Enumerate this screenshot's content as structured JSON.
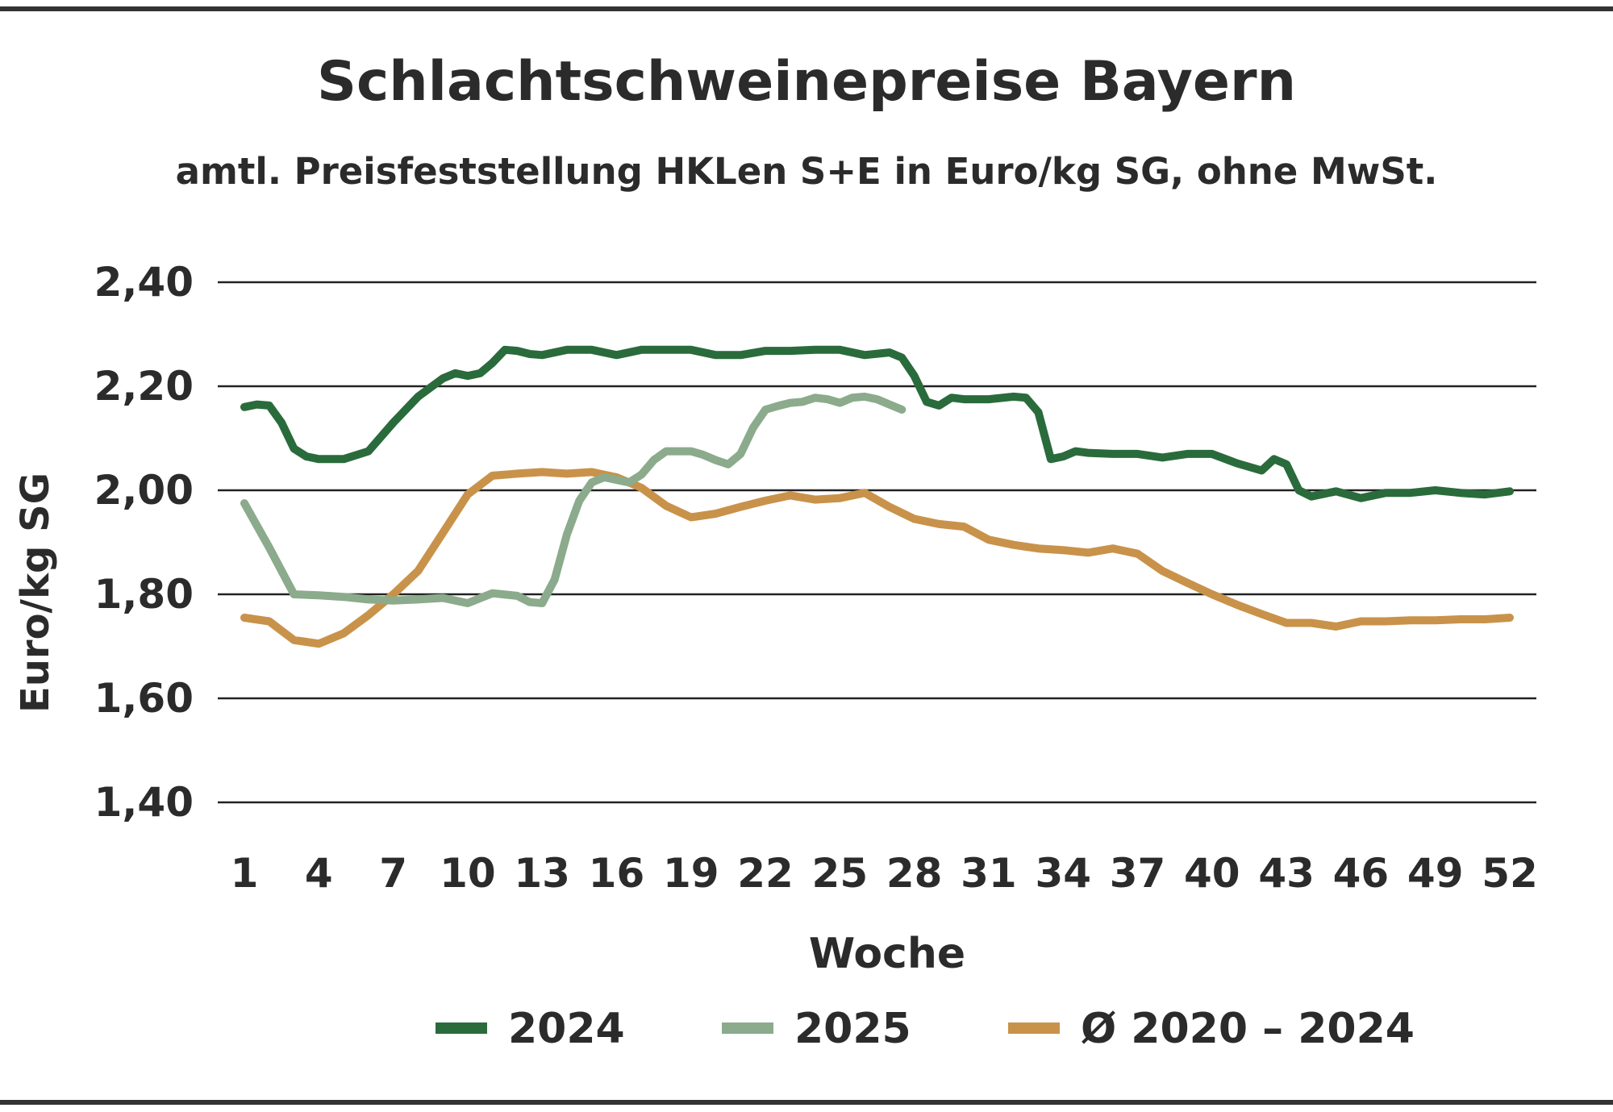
{
  "chart_data": {
    "type": "line",
    "title": "Schlachtschweinepreise Bayern",
    "subtitle": "amtl. Preisfeststellung HKLen S+E in Euro/kg SG, ohne MwSt.",
    "xlabel": "Woche",
    "ylabel": "Euro/kg SG",
    "x_ticks": [
      "1",
      "4",
      "7",
      "10",
      "13",
      "16",
      "19",
      "22",
      "25",
      "28",
      "31",
      "34",
      "37",
      "40",
      "43",
      "46",
      "49",
      "52"
    ],
    "y_ticks": [
      "2,40",
      "2,20",
      "2,00",
      "1,80",
      "1,60",
      "1,40"
    ],
    "ylim": [
      1.4,
      2.4
    ],
    "xlim": [
      1,
      52
    ],
    "grid": "horizontal",
    "legend_position": "bottom",
    "series": [
      {
        "name": "2024",
        "color": "#2a6b3c",
        "x": [
          1,
          1.5,
          2,
          2.5,
          3,
          3.5,
          4,
          4.5,
          5,
          6,
          7,
          8,
          9,
          9.5,
          10,
          10.5,
          11,
          11.5,
          12,
          12.5,
          13,
          14,
          15,
          16,
          17,
          18,
          19,
          20,
          21,
          22,
          23,
          24,
          25,
          26,
          27,
          27.5,
          28,
          28.5,
          29,
          29.5,
          30,
          31,
          32,
          32.5,
          33,
          33.5,
          34,
          34.5,
          35,
          36,
          37,
          38,
          39,
          40,
          41,
          42,
          42.5,
          43,
          43.5,
          44,
          45,
          46,
          47,
          48,
          49,
          50,
          51,
          52
        ],
        "values": [
          2.16,
          2.165,
          2.163,
          2.13,
          2.08,
          2.065,
          2.06,
          2.06,
          2.06,
          2.075,
          2.13,
          2.18,
          2.215,
          2.225,
          2.22,
          2.225,
          2.245,
          2.27,
          2.268,
          2.262,
          2.26,
          2.27,
          2.27,
          2.26,
          2.27,
          2.27,
          2.27,
          2.26,
          2.26,
          2.268,
          2.268,
          2.27,
          2.27,
          2.26,
          2.265,
          2.255,
          2.22,
          2.17,
          2.163,
          2.178,
          2.175,
          2.175,
          2.18,
          2.178,
          2.15,
          2.06,
          2.065,
          2.075,
          2.072,
          2.07,
          2.07,
          2.063,
          2.07,
          2.07,
          2.052,
          2.038,
          2.06,
          2.05,
          2.0,
          1.988,
          1.998,
          1.985,
          1.995,
          1.995,
          2.0,
          1.995,
          1.992,
          1.998
        ]
      },
      {
        "name": "2025",
        "color": "#8bab8c",
        "x": [
          1,
          2,
          3,
          4,
          5,
          6,
          7,
          8,
          9,
          10,
          11,
          12,
          12.5,
          13,
          13.5,
          14,
          14.5,
          15,
          15.5,
          16,
          16.5,
          17,
          17.5,
          18,
          18.5,
          19,
          19.5,
          20,
          20.5,
          21,
          21.5,
          22,
          22.5,
          23,
          23.5,
          24,
          24.5,
          25,
          25.5,
          26,
          26.5,
          27,
          27.5
        ],
        "values": [
          1.975,
          1.89,
          1.8,
          1.798,
          1.795,
          1.79,
          1.788,
          1.79,
          1.793,
          1.783,
          1.802,
          1.797,
          1.785,
          1.783,
          1.828,
          1.915,
          1.98,
          2.015,
          2.025,
          2.02,
          2.015,
          2.03,
          2.058,
          2.075,
          2.075,
          2.075,
          2.068,
          2.058,
          2.05,
          2.07,
          2.12,
          2.155,
          2.162,
          2.168,
          2.17,
          2.178,
          2.175,
          2.168,
          2.178,
          2.18,
          2.175,
          2.165,
          2.155
        ]
      },
      {
        "name": "Ø 2020 – 2024",
        "color": "#c9924a",
        "x": [
          1,
          2,
          3,
          4,
          5,
          6,
          7,
          8,
          9,
          10,
          11,
          12,
          13,
          14,
          15,
          16,
          17,
          18,
          19,
          20,
          21,
          22,
          23,
          24,
          25,
          26,
          27,
          28,
          29,
          30,
          31,
          32,
          33,
          34,
          35,
          36,
          37,
          38,
          39,
          40,
          41,
          42,
          43,
          44,
          45,
          46,
          47,
          48,
          49,
          50,
          51,
          52
        ],
        "values": [
          1.755,
          1.748,
          1.712,
          1.705,
          1.725,
          1.76,
          1.8,
          1.845,
          1.918,
          1.992,
          2.028,
          2.032,
          2.035,
          2.032,
          2.035,
          2.025,
          2.005,
          1.97,
          1.948,
          1.955,
          1.968,
          1.98,
          1.99,
          1.982,
          1.985,
          1.995,
          1.968,
          1.945,
          1.935,
          1.93,
          1.905,
          1.895,
          1.888,
          1.885,
          1.88,
          1.888,
          1.878,
          1.845,
          1.822,
          1.8,
          1.78,
          1.762,
          1.745,
          1.745,
          1.738,
          1.748,
          1.748,
          1.75,
          1.75,
          1.752,
          1.752,
          1.755
        ]
      }
    ]
  }
}
